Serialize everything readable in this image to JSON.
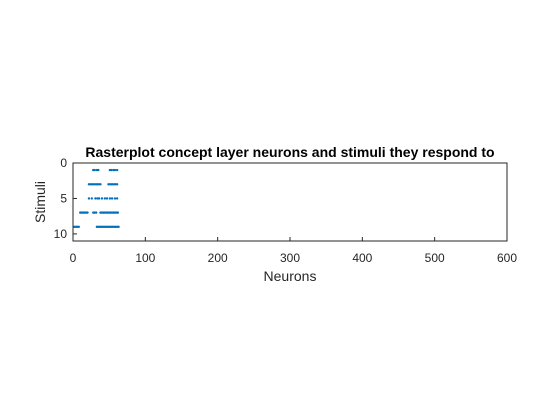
{
  "chart_data": {
    "type": "scatter",
    "title": "Rasterplot concept layer neurons and stimuli they respond to",
    "xlabel": "Neurons",
    "ylabel": "Stimuli",
    "xlim": [
      0,
      600
    ],
    "ylim": [
      0,
      11
    ],
    "y_reversed": true,
    "xticks": [
      0,
      100,
      200,
      300,
      400,
      500,
      600
    ],
    "yticks": [
      0,
      5,
      10
    ],
    "grid": false,
    "marker": "point",
    "color": "#0072BD",
    "points": [
      {
        "stimulus": 1,
        "neurons": [
          28,
          30,
          33,
          35,
          51,
          53,
          56,
          58,
          61
        ]
      },
      {
        "stimulus": 3,
        "neurons": [
          22,
          24,
          26,
          28,
          30,
          32,
          34,
          36,
          38,
          49,
          51,
          53,
          55,
          57,
          59,
          61
        ]
      },
      {
        "stimulus": 5,
        "neurons": [
          22,
          26,
          31,
          34,
          36,
          40,
          44,
          47,
          51,
          54,
          58,
          61
        ]
      },
      {
        "stimulus": 7,
        "neurons": [
          10,
          12,
          14,
          16,
          18,
          20,
          28,
          30,
          32,
          38,
          40,
          42,
          44,
          46,
          48,
          50,
          52,
          54,
          56,
          58,
          60,
          62
        ]
      },
      {
        "stimulus": 9,
        "neurons": [
          2,
          4,
          6,
          8,
          33,
          35,
          37,
          39,
          41,
          43,
          45,
          47,
          49,
          51,
          53,
          55,
          57,
          59,
          61,
          63
        ]
      }
    ]
  }
}
